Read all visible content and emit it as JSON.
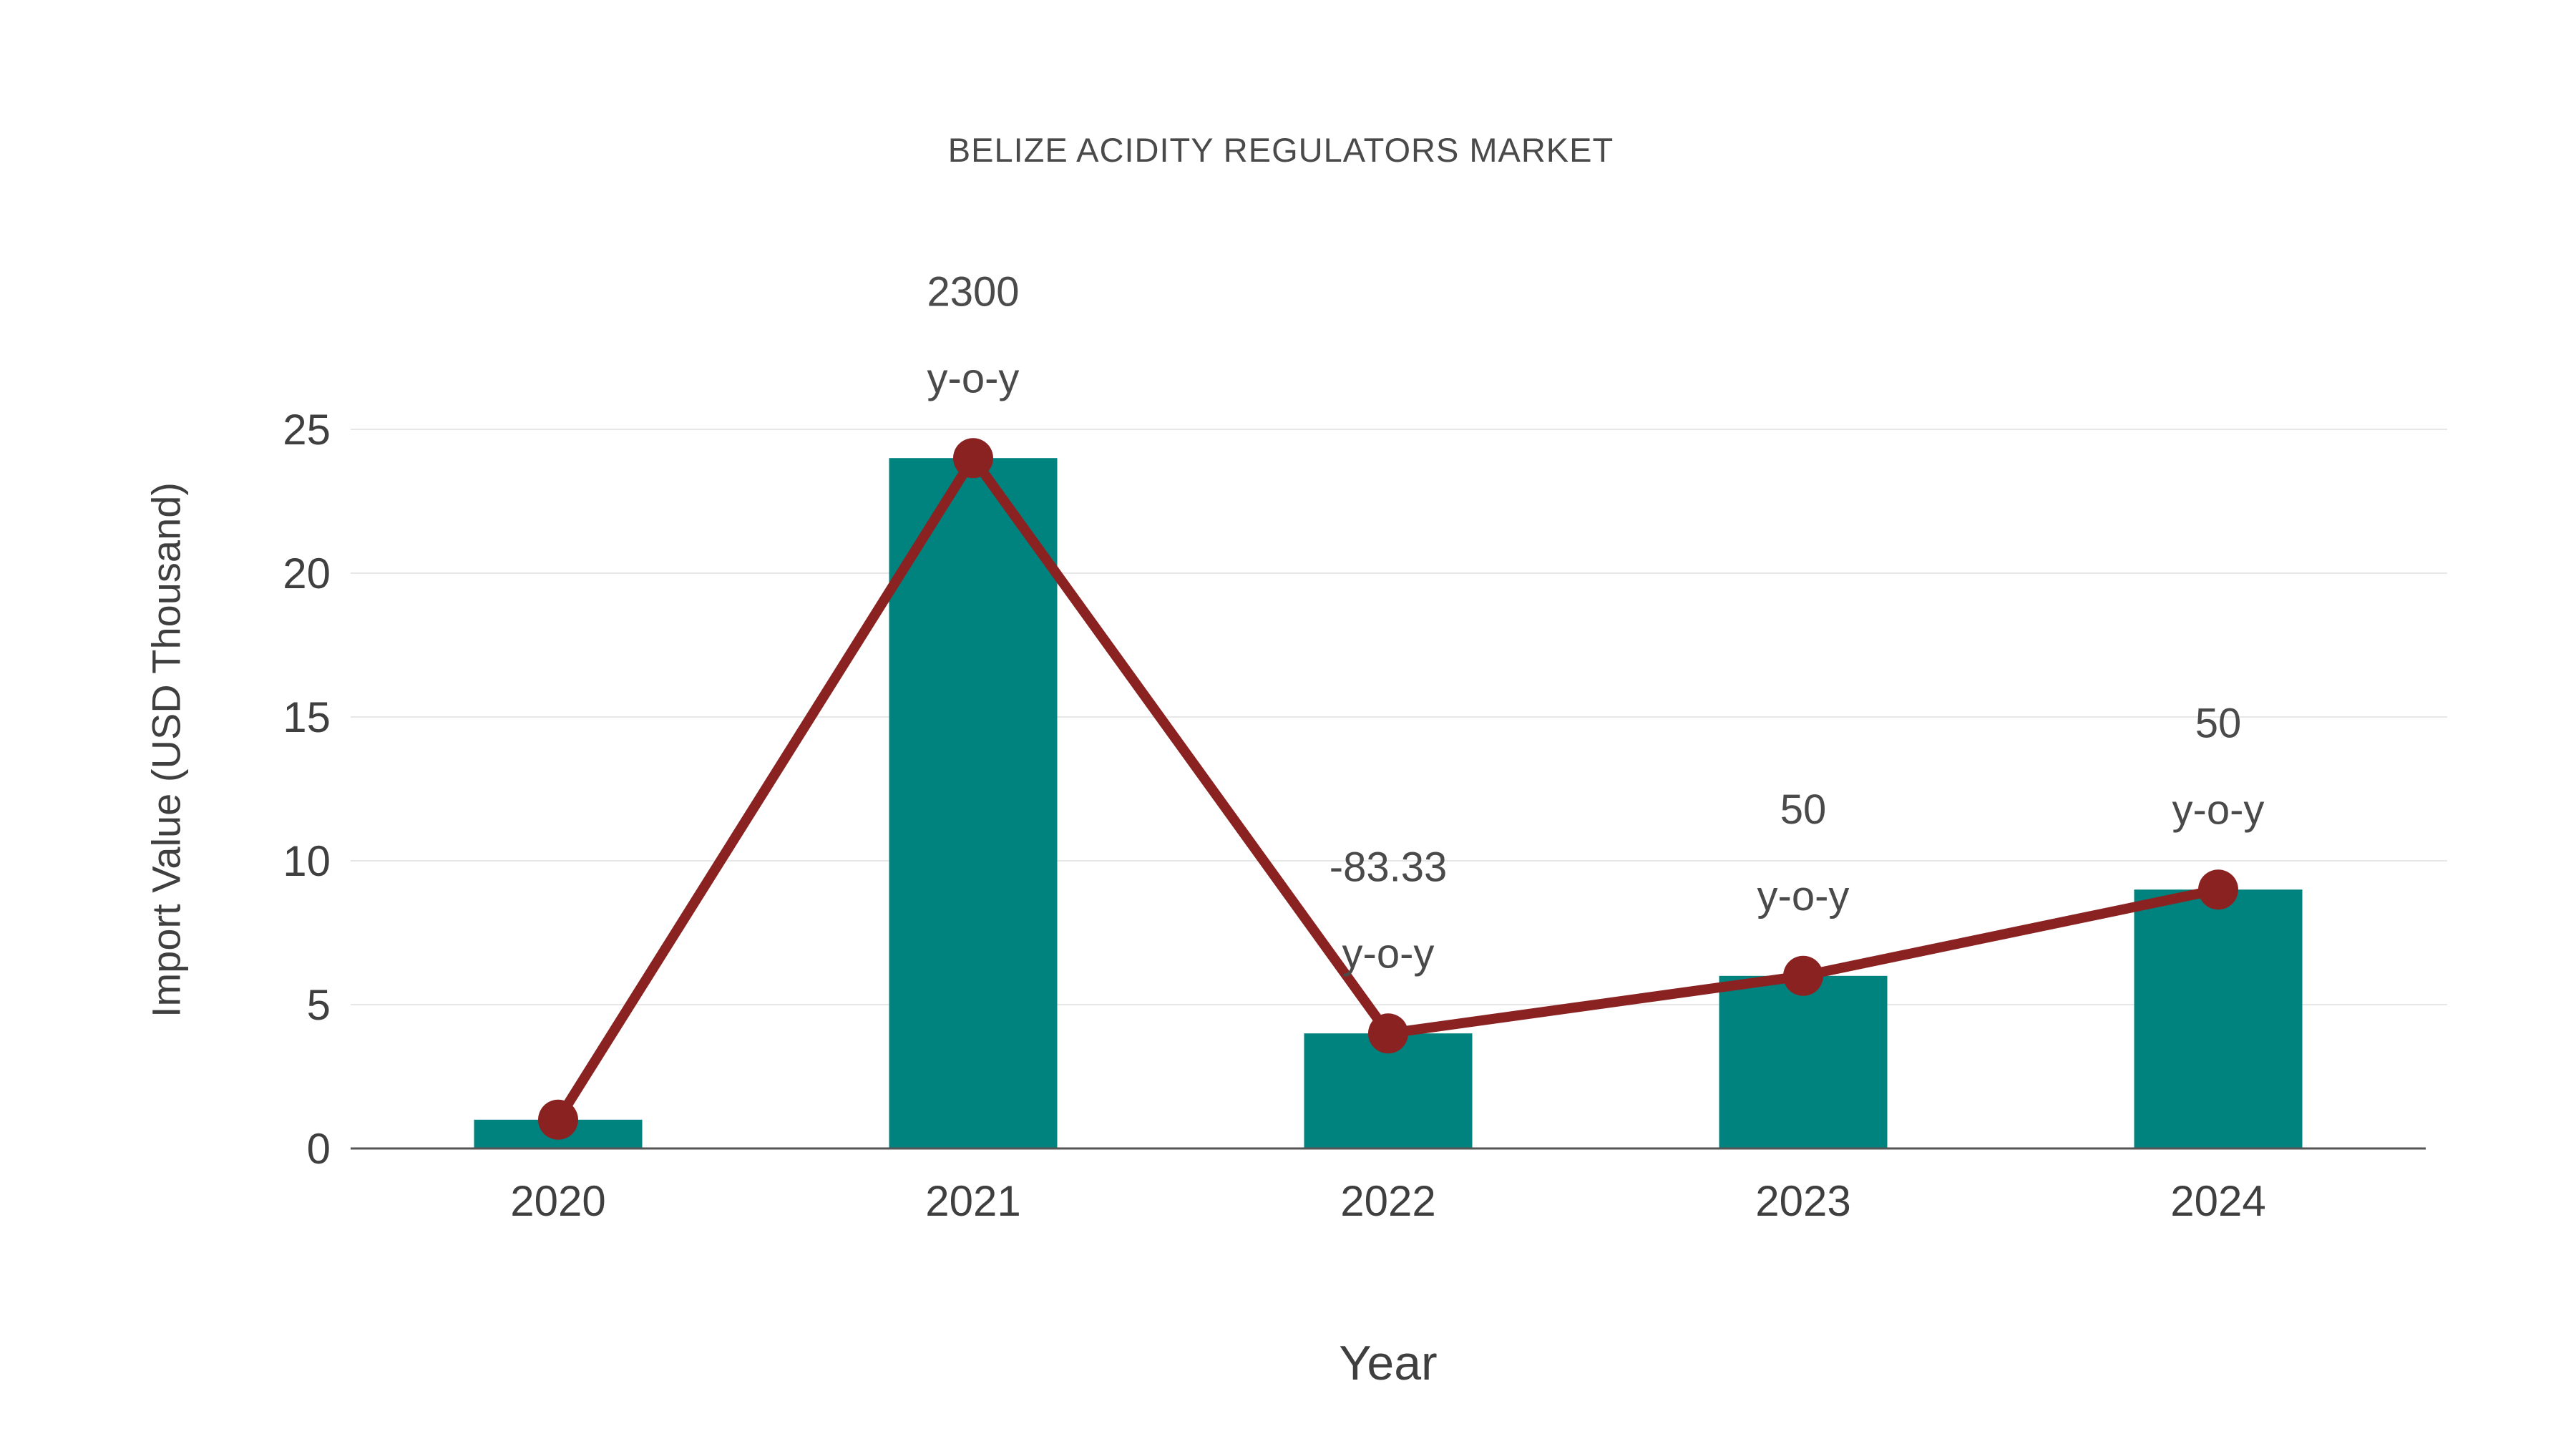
{
  "chart_data": {
    "type": "bar",
    "subtype": "bar-with-line-overlay",
    "title": "BELIZE ACIDITY REGULATORS MARKET",
    "xlabel": "Year",
    "ylabel": "Import Value (USD Thousand)",
    "categories": [
      "2020",
      "2021",
      "2022",
      "2023",
      "2024"
    ],
    "series": [
      {
        "name": "Import Value (bars)",
        "type": "bar",
        "values": [
          1,
          24,
          4,
          6,
          9
        ]
      },
      {
        "name": "Import Value (line)",
        "type": "line",
        "values": [
          1,
          24,
          4,
          6,
          9
        ]
      }
    ],
    "annotations": [
      {
        "category": "2021",
        "value_text": "2300",
        "suffix_text": "y-o-y"
      },
      {
        "category": "2022",
        "value_text": "-83.33",
        "suffix_text": "y-o-y"
      },
      {
        "category": "2023",
        "value_text": "50",
        "suffix_text": "y-o-y"
      },
      {
        "category": "2024",
        "value_text": "50",
        "suffix_text": "y-o-y"
      }
    ],
    "yticks": [
      0,
      5,
      10,
      15,
      20,
      25
    ],
    "ylim": [
      0,
      25
    ],
    "grid": true,
    "legend_position": "none",
    "colors": {
      "bar": "#00827E",
      "line": "#8B2222",
      "marker": "#8B2222",
      "gridline": "#E7E7E7",
      "axis_line": "#555555",
      "tick_text": "#3F3F3F",
      "annotation_text": "#4A4A4A",
      "title_text": "#4A4A4A"
    }
  }
}
